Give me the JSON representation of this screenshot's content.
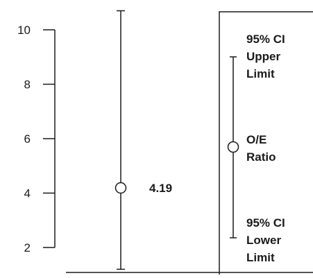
{
  "chart_data": {
    "type": "scatter",
    "y_ticks": [
      2,
      4,
      6,
      8,
      10
    ],
    "ylim": [
      1.2,
      10.7
    ],
    "points": [
      {
        "estimate": 4.19,
        "ci_lower": 1.2,
        "ci_upper": 10.7,
        "label": "4.19"
      }
    ],
    "legend": {
      "upper": [
        "95% CI",
        "Upper",
        "Limit"
      ],
      "center": [
        "O/E",
        "Ratio"
      ],
      "lower": [
        "95% CI",
        "Lower",
        "Limit"
      ]
    },
    "colors": {
      "ink": "#1a1a1a",
      "background": "#ffffff"
    }
  }
}
